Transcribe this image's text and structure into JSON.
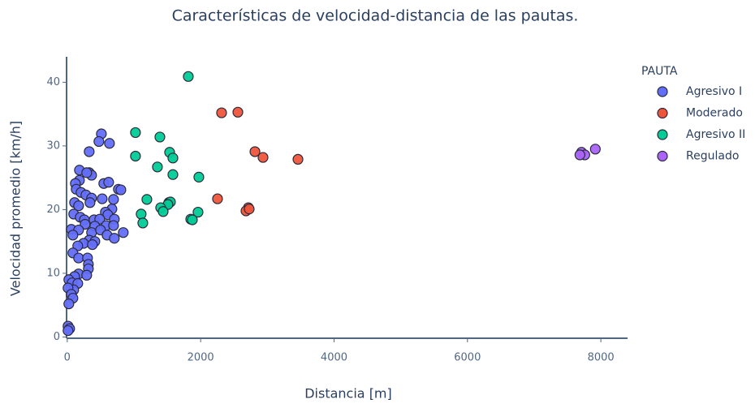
{
  "chart_data": {
    "type": "scatter",
    "title": "Características de velocidad-distancia de las pautas.",
    "x_label": "Distancia [m]",
    "y_label": "Velocidad promedio [km/h]",
    "legend_title": "PAUTA",
    "legend": "right",
    "grid": false,
    "xlim": [
      -10,
      8400
    ],
    "xticks": [
      0,
      2000,
      4000,
      6000,
      8000
    ],
    "ylim": [
      -0.2,
      44
    ],
    "yticks": [
      0,
      10,
      20,
      30,
      40
    ],
    "series": [
      {
        "name": "Agresivo I",
        "color": "#636efa",
        "x": [
          512,
          475,
          633,
          329,
          183,
          329,
          365,
          292,
          183,
          122,
          548,
          621,
          134,
          207,
          280,
          767,
          804,
          365,
          524,
          694,
          110,
          170,
          341,
          670,
          572,
          609,
          97,
          195,
          256,
          402,
          487,
          706,
          268,
          414,
          585,
          694,
          61,
          170,
          365,
          499,
          840,
          85,
          597,
          706,
          329,
          414,
          244,
          377,
          158,
          85,
          170,
          304,
          317,
          317,
          170,
          292,
          110,
          24,
          73,
          158,
          97,
          12,
          61,
          85,
          24,
          12,
          36,
          12
        ],
        "values": [
          31.9,
          30.7,
          30.4,
          29.1,
          26.2,
          25.8,
          25.4,
          25.8,
          24.6,
          24.1,
          24.1,
          24.3,
          23.2,
          22.7,
          22.3,
          23.2,
          23.1,
          21.8,
          21.7,
          21.6,
          21.1,
          20.6,
          21.1,
          20.1,
          19.6,
          19.2,
          19.3,
          18.8,
          18.4,
          18.4,
          18.5,
          18.5,
          17.7,
          17.4,
          17.5,
          17.5,
          16.9,
          16.8,
          16.4,
          16.8,
          16.4,
          16,
          16,
          15.5,
          15.2,
          15,
          14.7,
          14.5,
          14.3,
          13.2,
          12.4,
          12.4,
          11.4,
          10.7,
          9.9,
          9.7,
          9.5,
          9,
          8.5,
          8.4,
          7.4,
          7.7,
          6.7,
          6.1,
          5.2,
          1.7,
          1.3,
          1
        ]
      },
      {
        "name": "Moderado",
        "color": "#ef553b",
        "x": [
          2314,
          2558,
          2814,
          2935,
          3459,
          2253,
          2716,
          2680,
          2728,
          1523
        ],
        "values": [
          35.2,
          35.3,
          29.1,
          28.2,
          27.9,
          21.7,
          20.3,
          19.8,
          20.1,
          21.1
        ]
      },
      {
        "name": "Agresivo II",
        "color": "#00cc96",
        "x": [
          1815,
          1023,
          1389,
          1023,
          1535,
          1584,
          1352,
          1584,
          1973,
          1194,
          1547,
          1510,
          1401,
          1438,
          1108,
          1961,
          1852,
          1876,
          1133
        ],
        "values": [
          40.9,
          32.1,
          31.4,
          28.4,
          29,
          28.1,
          26.7,
          25.5,
          25.1,
          21.6,
          21.2,
          20.8,
          20.3,
          19.7,
          19.3,
          19.6,
          18.5,
          18.4,
          17.9
        ]
      },
      {
        "name": "Regulado",
        "color": "#ab63fa",
        "x": [
          7710,
          7759,
          7686,
          7917
        ],
        "values": [
          29,
          28.6,
          28.6,
          29.5
        ]
      }
    ]
  }
}
